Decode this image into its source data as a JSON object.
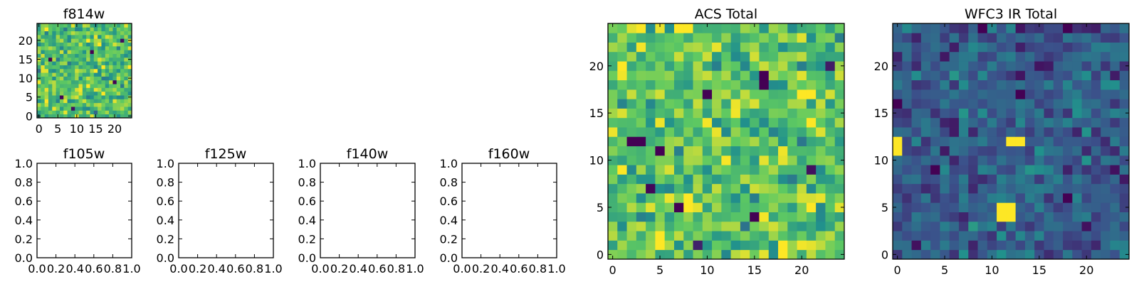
{
  "figure": {
    "background": "#ffffff"
  },
  "colormap": {
    "name": "viridis",
    "stops": [
      "#440154",
      "#3b528b",
      "#21918c",
      "#5ec962",
      "#fde725"
    ]
  },
  "chart_data": [
    {
      "id": "f814w",
      "type": "heatmap",
      "title": "f814w",
      "grid_size": 25,
      "xlim": [
        -0.5,
        24.5
      ],
      "ylim": [
        -0.5,
        24.5
      ],
      "xticks": [
        0,
        5,
        10,
        15,
        20
      ],
      "xtick_labels": [
        "0",
        "5",
        "10",
        "15",
        "20"
      ],
      "yticks": [
        0,
        5,
        10,
        15,
        20
      ],
      "ytick_labels": [
        "0",
        "5",
        "10",
        "15",
        "20"
      ],
      "value_range": [
        0,
        1
      ],
      "pattern": {
        "mean": 0.7,
        "spread": 0.17,
        "seed": 11
      },
      "outliers": [
        [
          3,
          15,
          0.0
        ],
        [
          14,
          17,
          0.0
        ],
        [
          6,
          5,
          0.02
        ],
        [
          20,
          9,
          0.0
        ],
        [
          9,
          2,
          0.05
        ],
        [
          22,
          20,
          0.04
        ],
        [
          11,
          6,
          0.95
        ],
        [
          17,
          13,
          1.0
        ]
      ]
    },
    {
      "id": "f105w",
      "type": "heatmap",
      "title": "f105w",
      "empty": true,
      "xlim": [
        0,
        1
      ],
      "ylim": [
        0,
        1
      ],
      "xticks": [
        0,
        0.2,
        0.4,
        0.6,
        0.8,
        1.0
      ],
      "xtick_labels": [
        "0.0",
        "0.2",
        "0.4",
        "0.6",
        "0.8",
        "1.0"
      ],
      "yticks": [
        0,
        0.2,
        0.4,
        0.6,
        0.8,
        1.0
      ],
      "ytick_labels": [
        "0.0",
        "0.2",
        "0.4",
        "0.6",
        "0.8",
        "1.0"
      ]
    },
    {
      "id": "f125w",
      "type": "heatmap",
      "title": "f125w",
      "empty": true,
      "xlim": [
        0,
        1
      ],
      "ylim": [
        0,
        1
      ],
      "xticks": [
        0,
        0.2,
        0.4,
        0.6,
        0.8,
        1.0
      ],
      "xtick_labels": [
        "0.0",
        "0.2",
        "0.4",
        "0.6",
        "0.8",
        "1.0"
      ],
      "yticks": [
        0,
        0.2,
        0.4,
        0.6,
        0.8,
        1.0
      ],
      "ytick_labels": [
        "0.0",
        "0.2",
        "0.4",
        "0.6",
        "0.8",
        "1.0"
      ]
    },
    {
      "id": "f140w",
      "type": "heatmap",
      "title": "f140w",
      "empty": true,
      "xlim": [
        0,
        1
      ],
      "ylim": [
        0,
        1
      ],
      "xticks": [
        0,
        0.2,
        0.4,
        0.6,
        0.8,
        1.0
      ],
      "xtick_labels": [
        "0.0",
        "0.2",
        "0.4",
        "0.6",
        "0.8",
        "1.0"
      ],
      "yticks": [
        0,
        0.2,
        0.4,
        0.6,
        0.8,
        1.0
      ],
      "ytick_labels": [
        "0.0",
        "0.2",
        "0.4",
        "0.6",
        "0.8",
        "1.0"
      ]
    },
    {
      "id": "f160w",
      "type": "heatmap",
      "title": "f160w",
      "empty": true,
      "xlim": [
        0,
        1
      ],
      "ylim": [
        0,
        1
      ],
      "xticks": [
        0,
        0.2,
        0.4,
        0.6,
        0.8,
        1.0
      ],
      "xtick_labels": [
        "0.0",
        "0.2",
        "0.4",
        "0.6",
        "0.8",
        "1.0"
      ],
      "yticks": [
        0,
        0.2,
        0.4,
        0.6,
        0.8,
        1.0
      ],
      "ytick_labels": [
        "0.0",
        "0.2",
        "0.4",
        "0.6",
        "0.8",
        "1.0"
      ]
    },
    {
      "id": "acs-total",
      "type": "heatmap",
      "title": "ACS Total",
      "grid_size": 25,
      "xlim": [
        -0.5,
        24.5
      ],
      "ylim": [
        -0.5,
        24.5
      ],
      "xticks": [
        0,
        5,
        10,
        15,
        20
      ],
      "xtick_labels": [
        "0",
        "5",
        "10",
        "15",
        "20"
      ],
      "yticks": [
        0,
        5,
        10,
        15,
        20
      ],
      "ytick_labels": [
        "0",
        "5",
        "10",
        "15",
        "20"
      ],
      "value_range": [
        0,
        1
      ],
      "pattern": {
        "mean": 0.72,
        "spread": 0.16,
        "seed": 29
      },
      "outliers": [
        [
          2,
          12,
          0.0
        ],
        [
          3,
          12,
          0.0
        ],
        [
          5,
          11,
          0.0
        ],
        [
          10,
          17,
          0.0
        ],
        [
          16,
          19,
          0.0
        ],
        [
          16,
          18,
          0.0
        ],
        [
          7,
          5,
          0.0
        ],
        [
          4,
          7,
          0.02
        ],
        [
          15,
          4,
          0.0
        ],
        [
          21,
          9,
          0.05
        ],
        [
          9,
          1,
          0.1
        ],
        [
          23,
          20,
          0.08
        ],
        [
          7,
          24,
          1.0
        ],
        [
          8,
          24,
          1.0
        ],
        [
          20,
          17,
          1.0
        ],
        [
          21,
          17,
          1.0
        ],
        [
          8,
          6,
          1.0
        ],
        [
          8,
          5,
          1.0
        ],
        [
          5,
          2,
          1.0
        ],
        [
          5,
          1,
          1.0
        ],
        [
          18,
          0,
          1.0
        ],
        [
          18,
          1,
          1.0
        ],
        [
          1,
          19,
          0.98
        ],
        [
          11,
          13,
          0.97
        ]
      ]
    },
    {
      "id": "wfc3-ir-total",
      "type": "heatmap",
      "title": "WFC3 IR Total",
      "grid_size": 25,
      "xlim": [
        -0.5,
        24.5
      ],
      "ylim": [
        -0.5,
        24.5
      ],
      "xticks": [
        0,
        5,
        10,
        15,
        20
      ],
      "xtick_labels": [
        "0",
        "5",
        "10",
        "15",
        "20"
      ],
      "yticks": [
        0,
        5,
        10,
        15,
        20
      ],
      "ytick_labels": [
        "0",
        "5",
        "10",
        "15",
        "20"
      ],
      "value_range": [
        0,
        1
      ],
      "pattern": {
        "mean": 0.3,
        "spread": 0.12,
        "seed": 47
      },
      "outliers": [
        [
          0,
          11,
          1.0
        ],
        [
          0,
          12,
          1.0
        ],
        [
          12,
          12,
          1.0
        ],
        [
          13,
          12,
          1.0
        ],
        [
          11,
          4,
          1.0
        ],
        [
          12,
          4,
          1.0
        ],
        [
          11,
          5,
          1.0
        ],
        [
          12,
          5,
          1.0
        ],
        [
          0,
          16,
          0.0
        ],
        [
          13,
          17,
          0.0
        ],
        [
          4,
          9,
          0.0
        ],
        [
          18,
          6,
          0.0
        ],
        [
          9,
          24,
          0.0
        ],
        [
          18,
          24,
          0.0
        ],
        [
          2,
          1,
          0.05
        ],
        [
          20,
          3,
          0.05
        ],
        [
          6,
          14,
          0.08
        ],
        [
          23,
          9,
          0.05
        ],
        [
          15,
          20,
          0.06
        ],
        [
          5,
          21,
          0.07
        ]
      ]
    }
  ]
}
